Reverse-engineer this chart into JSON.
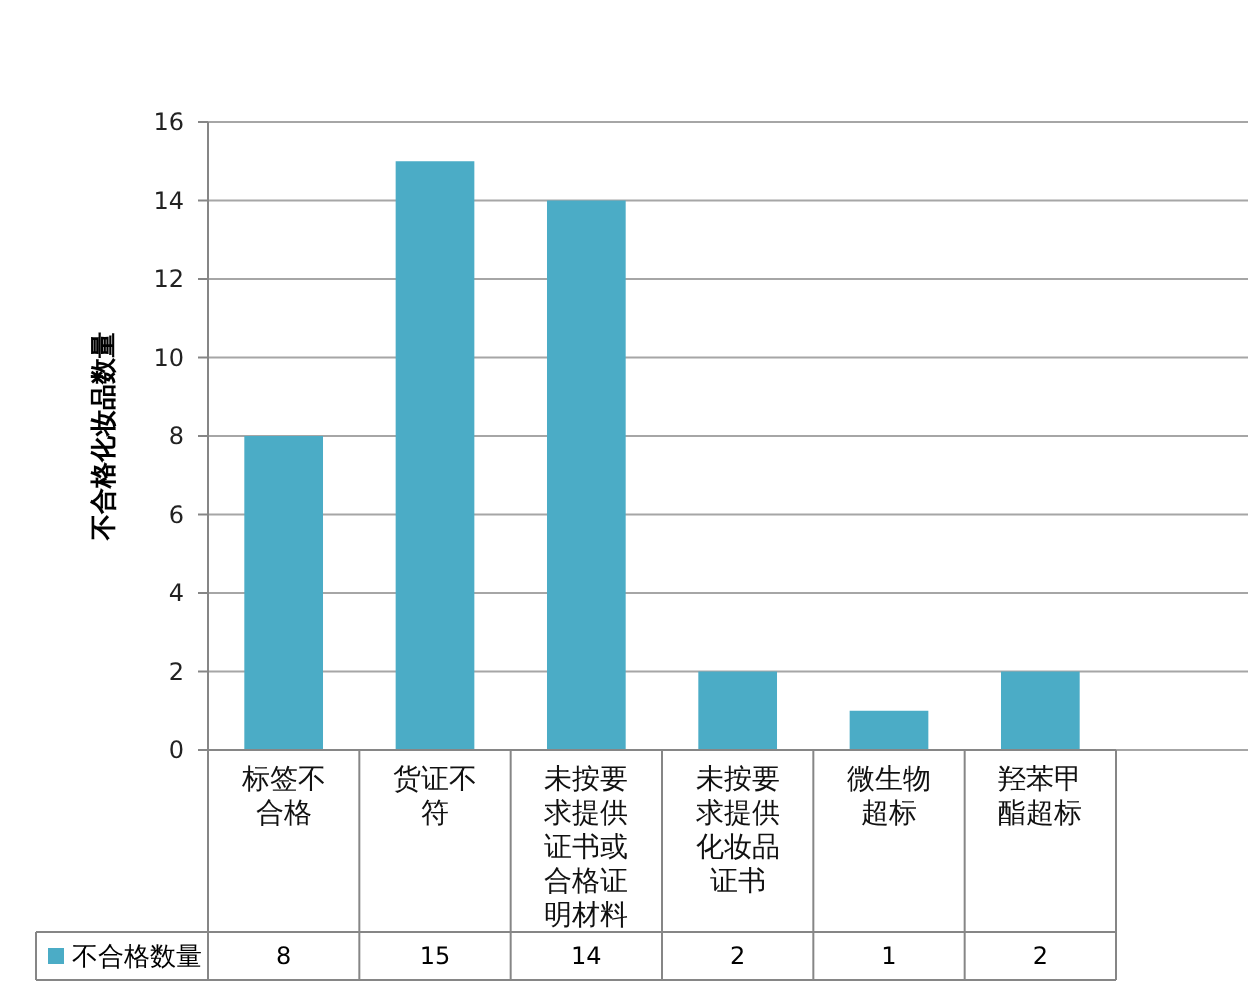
{
  "chart_data": {
    "type": "bar",
    "ylabel": "不合格化妆品数量",
    "categories": [
      "标签不合格",
      "货证不符",
      "未按要求提供证书或合格证明材料",
      "未按要求提供化妆品证书",
      "微生物超标",
      "羟苯甲酯超标"
    ],
    "series": [
      {
        "name": "不合格数量",
        "color": "#4bacc6",
        "values": [
          8,
          15,
          14,
          2,
          1,
          2
        ]
      }
    ],
    "ylim": [
      0,
      16
    ],
    "yticks": [
      0,
      2,
      4,
      6,
      8,
      10,
      12,
      14,
      16
    ],
    "grid": "y",
    "legend": "bottom",
    "data_labels": true
  }
}
